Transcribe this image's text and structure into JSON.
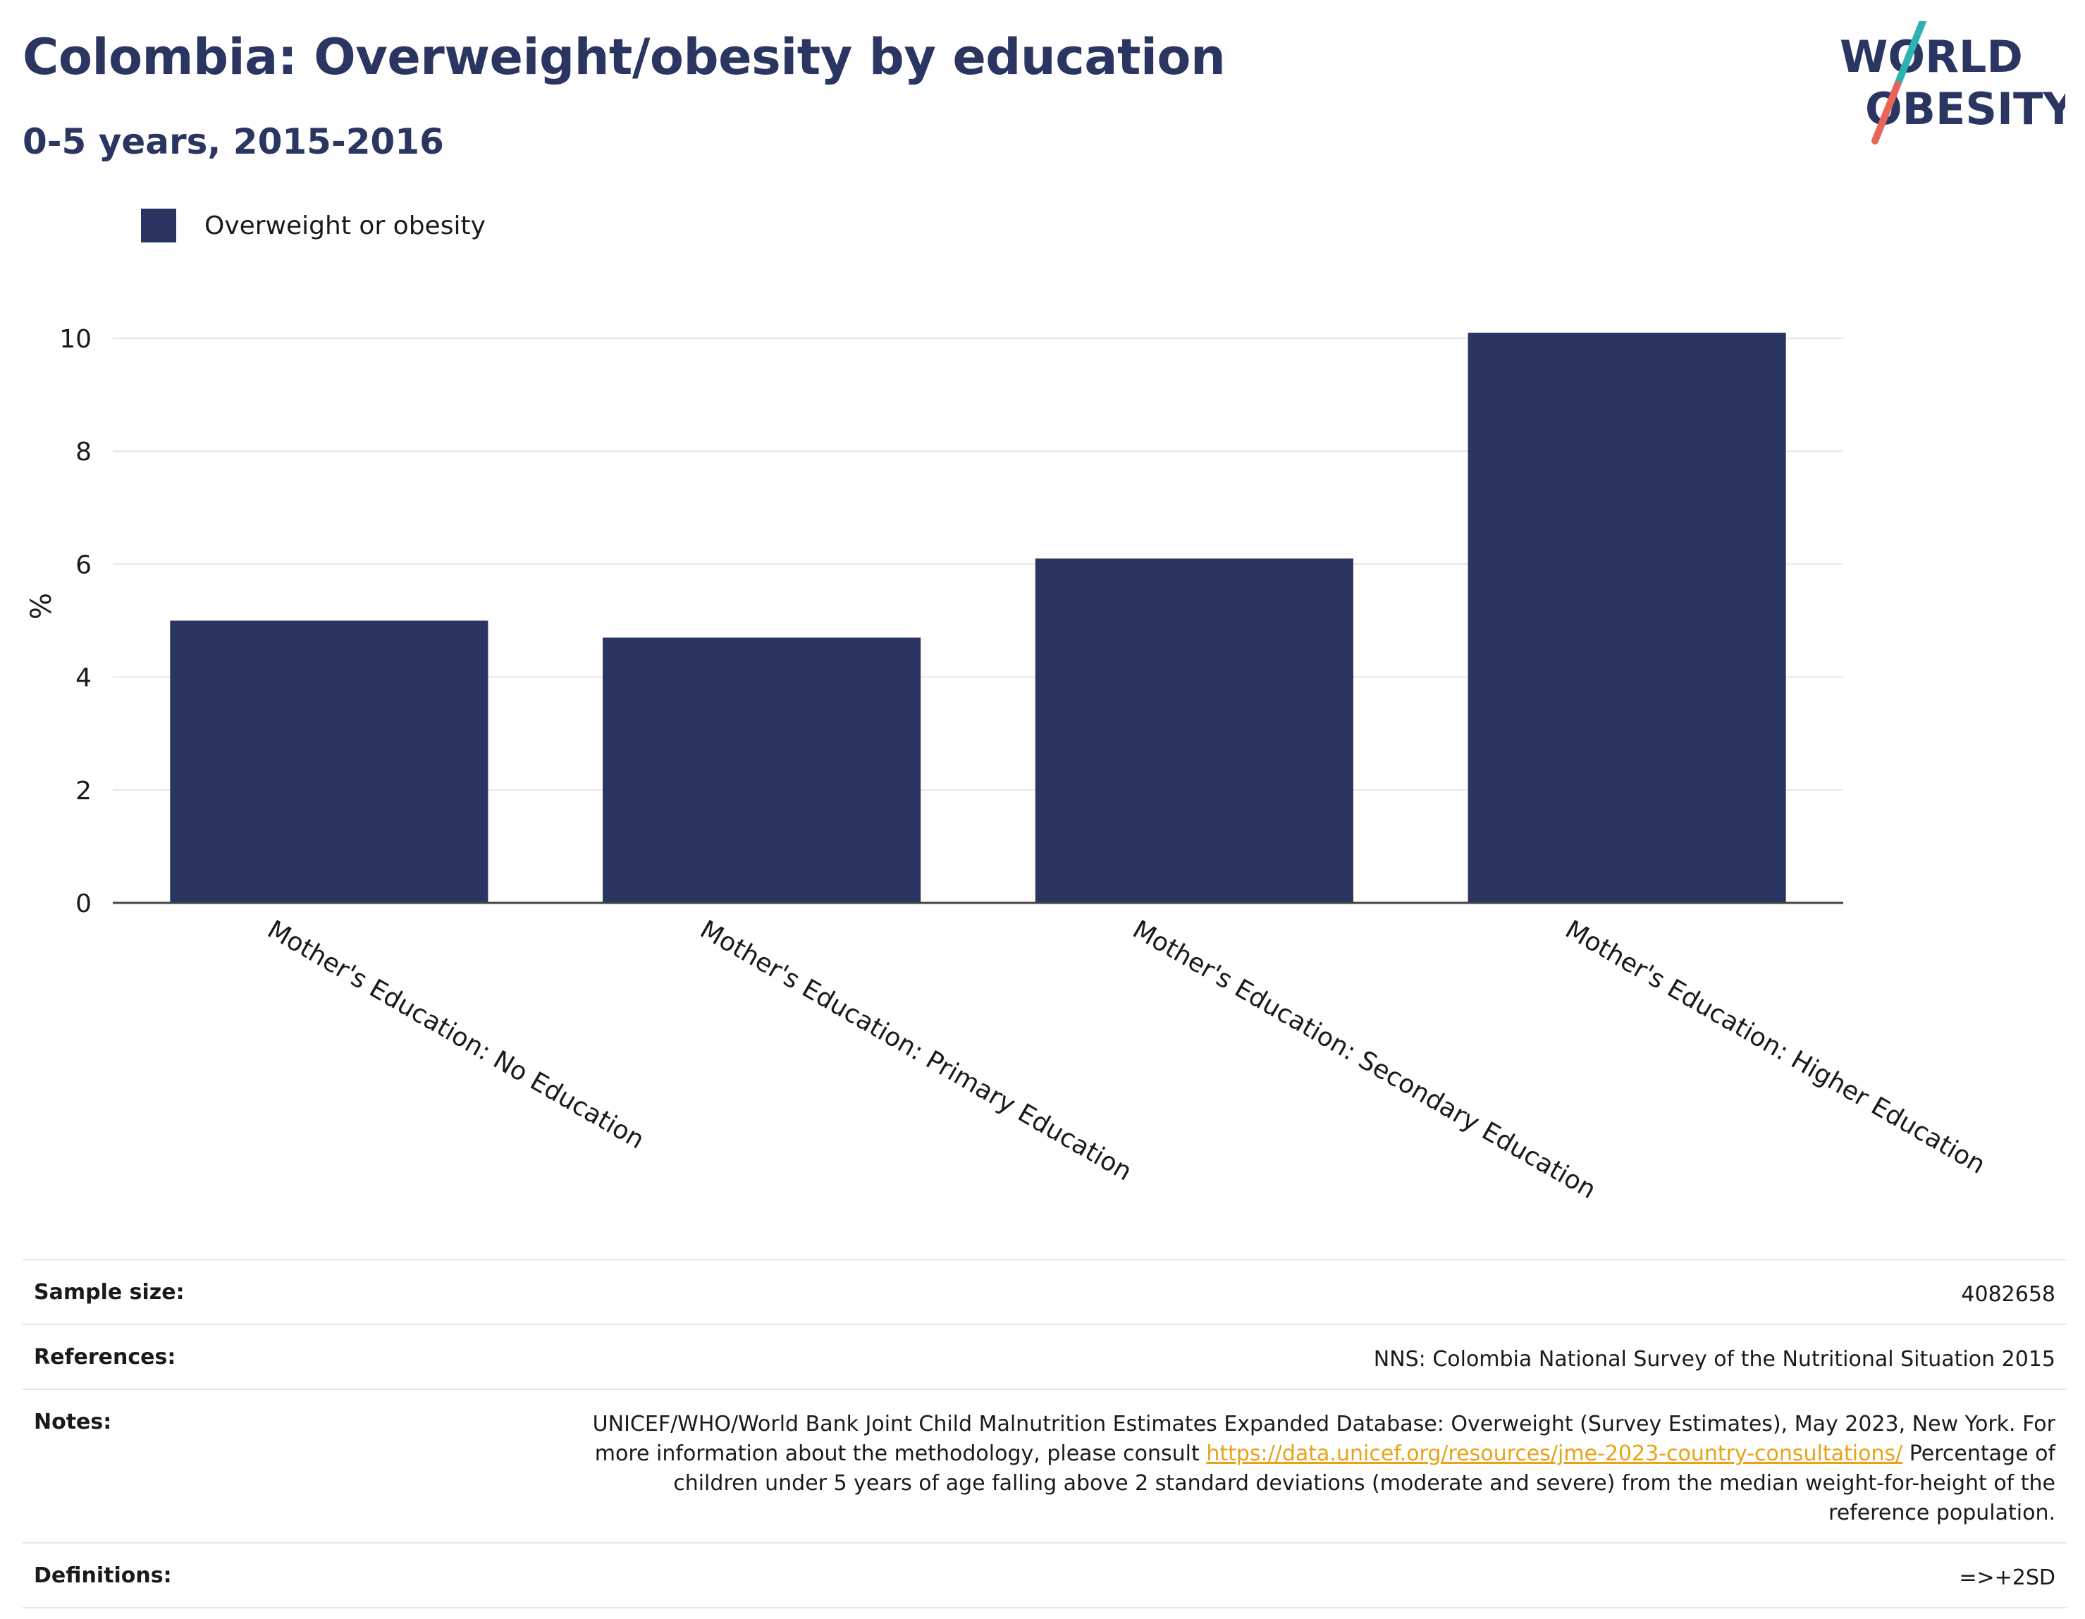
{
  "header": {
    "title": "Colombia: Overweight/obesity by education",
    "subtitle": "0-5 years, 2015-2016"
  },
  "logo": {
    "line1": "WORLD",
    "line2": "OBESITY",
    "colors": {
      "text": "#2a3561",
      "slash_top": "#2bb3b1",
      "slash_bottom": "#e8655a"
    }
  },
  "legend": {
    "label": "Overweight or obesity",
    "color": "#2a3561"
  },
  "chart_data": {
    "type": "bar",
    "ylabel": "%",
    "xlabel": "",
    "ylim": [
      0,
      10.5
    ],
    "yticks": [
      0,
      2,
      4,
      6,
      8,
      10
    ],
    "grid": true,
    "legend_position": "top-left",
    "categories": [
      "Mother's Education: No Education",
      "Mother's Education: Primary Education",
      "Mother's Education: Secondary Education",
      "Mother's Education: Higher Education"
    ],
    "series": [
      {
        "name": "Overweight or obesity",
        "color": "#2a3561",
        "values": [
          5.0,
          4.7,
          6.1,
          10.1
        ]
      }
    ]
  },
  "info": {
    "sample_size_label": "Sample size:",
    "sample_size_value": "4082658",
    "references_label": "References:",
    "references_value": "NNS: Colombia National Survey of the Nutritional Situation 2015",
    "notes_label": "Notes:",
    "notes_text_1": "UNICEF/WHO/World Bank Joint Child Malnutrition Estimates Expanded Database: Overweight (Survey Estimates), May 2023, New York. For more information about the methodology, please consult ",
    "notes_link": "https://data.unicef.org/resources/jme-2023-country-consultations/",
    "notes_text_2": "Percentage of children under 5 years of age falling above 2 standard deviations (moderate and severe) from the median weight-for-height of the reference population.",
    "definitions_label": "Definitions:",
    "definitions_value": "=>+2SD"
  }
}
